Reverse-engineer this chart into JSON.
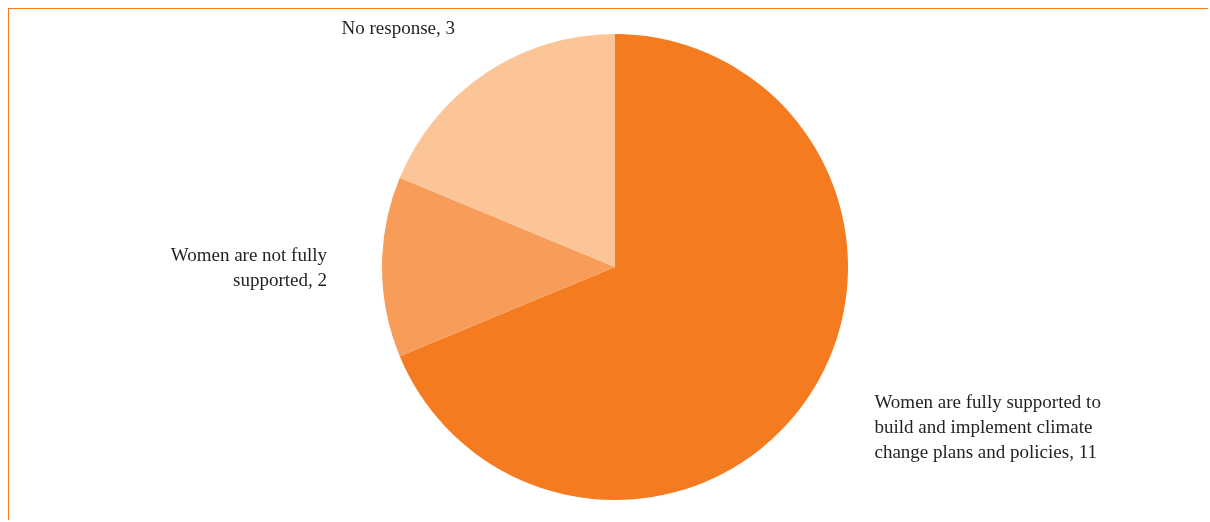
{
  "chart_data": {
    "type": "pie",
    "categories": [
      "Women are fully supported to build and implement climate change plans and policies",
      "Women are not fully supported",
      "No response"
    ],
    "values": [
      11,
      2,
      3
    ],
    "colors": [
      "#f47b20",
      "#f89c5a",
      "#fbc597"
    ],
    "value_labels": [
      "11",
      "2",
      "3"
    ]
  }
}
